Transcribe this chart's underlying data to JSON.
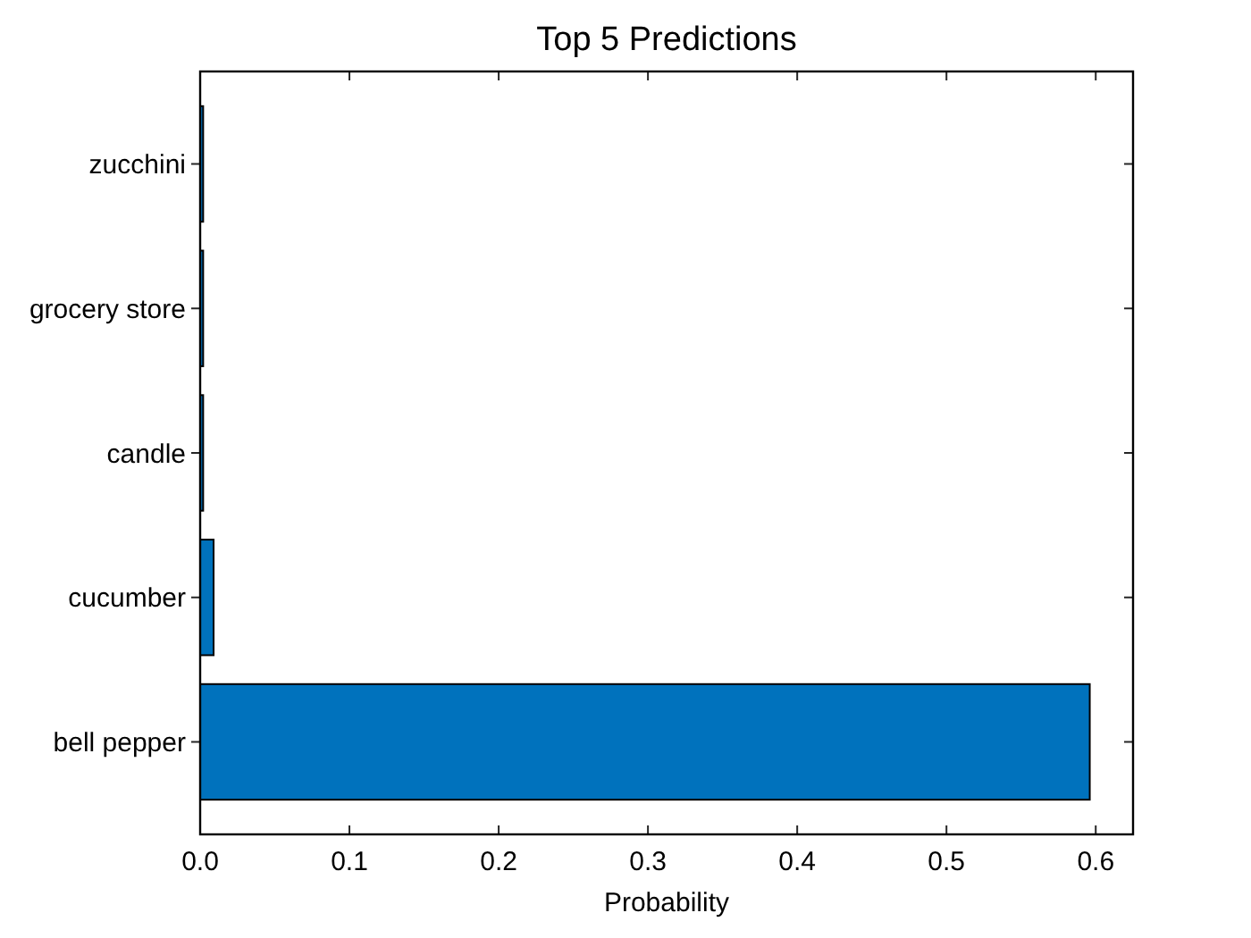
{
  "chart_data": {
    "type": "bar",
    "orientation": "horizontal",
    "title": "Top 5 Predictions",
    "xlabel": "Probability",
    "categories": [
      "zucchini",
      "grocery store",
      "candle",
      "cucumber",
      "bell pepper"
    ],
    "values": [
      0.002,
      0.002,
      0.002,
      0.009,
      0.596
    ],
    "color": "#0072bd",
    "xlim": [
      0,
      0.625
    ],
    "xticks": [
      {
        "value": 0,
        "label": "0.0"
      },
      0.1,
      0.2,
      0.3,
      0.4,
      0.5,
      0.6
    ]
  }
}
